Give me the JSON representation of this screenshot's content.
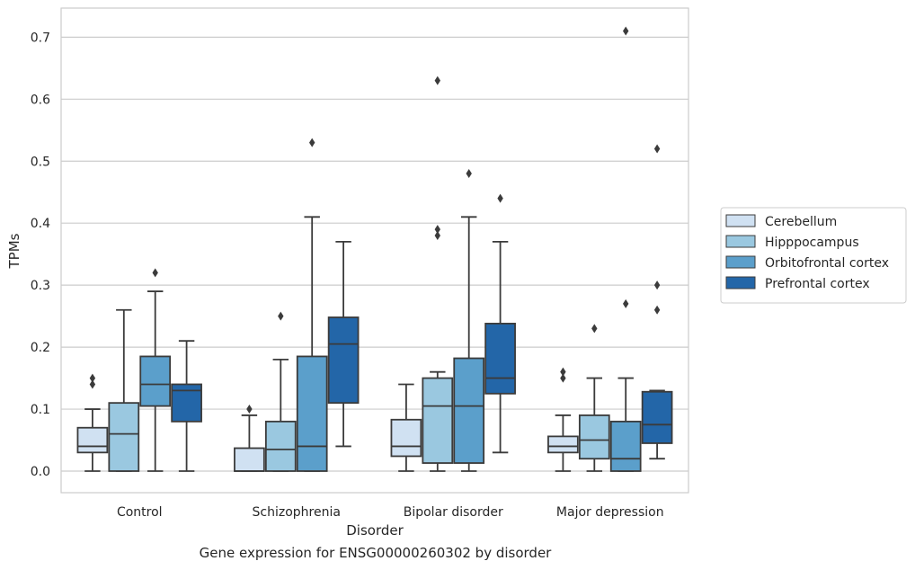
{
  "chart_data": {
    "type": "box",
    "xlabel": "Disorder",
    "ylabel": "TPMs",
    "caption": "Gene expression for ENSG00000260302 by disorder",
    "ylim": [
      -0.035,
      0.75
    ],
    "yticks": [
      0.0,
      0.1,
      0.2,
      0.3,
      0.4,
      0.5,
      0.6,
      0.7
    ],
    "ytick_labels": [
      "0.0",
      "0.1",
      "0.2",
      "0.3",
      "0.4",
      "0.5",
      "0.6",
      "0.7"
    ],
    "grid": "horizontal",
    "legend_position": "right",
    "categories": [
      "Control",
      "Schizophrenia",
      "Bipolar disorder",
      "Major depression"
    ],
    "series": [
      {
        "name": "Cerebellum",
        "color": "#d0e1f2",
        "boxes": [
          {
            "whislo": 0.0,
            "q1": 0.03,
            "med": 0.04,
            "q3": 0.07,
            "whishi": 0.1,
            "fliers": [
              0.14,
              0.15
            ]
          },
          {
            "whislo": 0.0,
            "q1": 0.0,
            "med": 0.0,
            "q3": 0.037,
            "whishi": 0.09,
            "fliers": [
              0.1
            ]
          },
          {
            "whislo": 0.0,
            "q1": 0.024,
            "med": 0.04,
            "q3": 0.083,
            "whishi": 0.14,
            "fliers": []
          },
          {
            "whislo": 0.0,
            "q1": 0.03,
            "med": 0.04,
            "q3": 0.056,
            "whishi": 0.09,
            "fliers": [
              0.15,
              0.16
            ]
          }
        ]
      },
      {
        "name": "Hipppocampus",
        "color": "#9ac8e0",
        "boxes": [
          {
            "whislo": 0.0,
            "q1": 0.0,
            "med": 0.06,
            "q3": 0.11,
            "whishi": 0.26,
            "fliers": []
          },
          {
            "whislo": 0.0,
            "q1": 0.0,
            "med": 0.035,
            "q3": 0.08,
            "whishi": 0.18,
            "fliers": [
              0.25
            ]
          },
          {
            "whislo": 0.0,
            "q1": 0.013,
            "med": 0.105,
            "q3": 0.15,
            "whishi": 0.16,
            "fliers": [
              0.38,
              0.39,
              0.63
            ]
          },
          {
            "whislo": 0.0,
            "q1": 0.02,
            "med": 0.05,
            "q3": 0.09,
            "whishi": 0.15,
            "fliers": [
              0.23
            ]
          }
        ]
      },
      {
        "name": "Orbitofrontal cortex",
        "color": "#5b9fcb",
        "boxes": [
          {
            "whislo": 0.0,
            "q1": 0.105,
            "med": 0.14,
            "q3": 0.185,
            "whishi": 0.29,
            "fliers": [
              0.32
            ]
          },
          {
            "whislo": 0.0,
            "q1": 0.0,
            "med": 0.04,
            "q3": 0.185,
            "whishi": 0.41,
            "fliers": [
              0.53
            ]
          },
          {
            "whislo": 0.0,
            "q1": 0.013,
            "med": 0.105,
            "q3": 0.182,
            "whishi": 0.41,
            "fliers": [
              0.48
            ]
          },
          {
            "whislo": 0.0,
            "q1": 0.0,
            "med": 0.02,
            "q3": 0.08,
            "whishi": 0.15,
            "fliers": [
              0.27,
              0.71
            ]
          }
        ]
      },
      {
        "name": "Prefrontal cortex",
        "color": "#2366a8",
        "boxes": [
          {
            "whislo": 0.0,
            "q1": 0.08,
            "med": 0.13,
            "q3": 0.14,
            "whishi": 0.21,
            "fliers": []
          },
          {
            "whislo": 0.04,
            "q1": 0.11,
            "med": 0.205,
            "q3": 0.248,
            "whishi": 0.37,
            "fliers": []
          },
          {
            "whislo": 0.03,
            "q1": 0.125,
            "med": 0.15,
            "q3": 0.238,
            "whishi": 0.37,
            "fliers": [
              0.44
            ]
          },
          {
            "whislo": 0.02,
            "q1": 0.045,
            "med": 0.075,
            "q3": 0.128,
            "whishi": 0.13,
            "fliers": [
              0.26,
              0.3,
              0.52
            ]
          }
        ]
      }
    ]
  }
}
